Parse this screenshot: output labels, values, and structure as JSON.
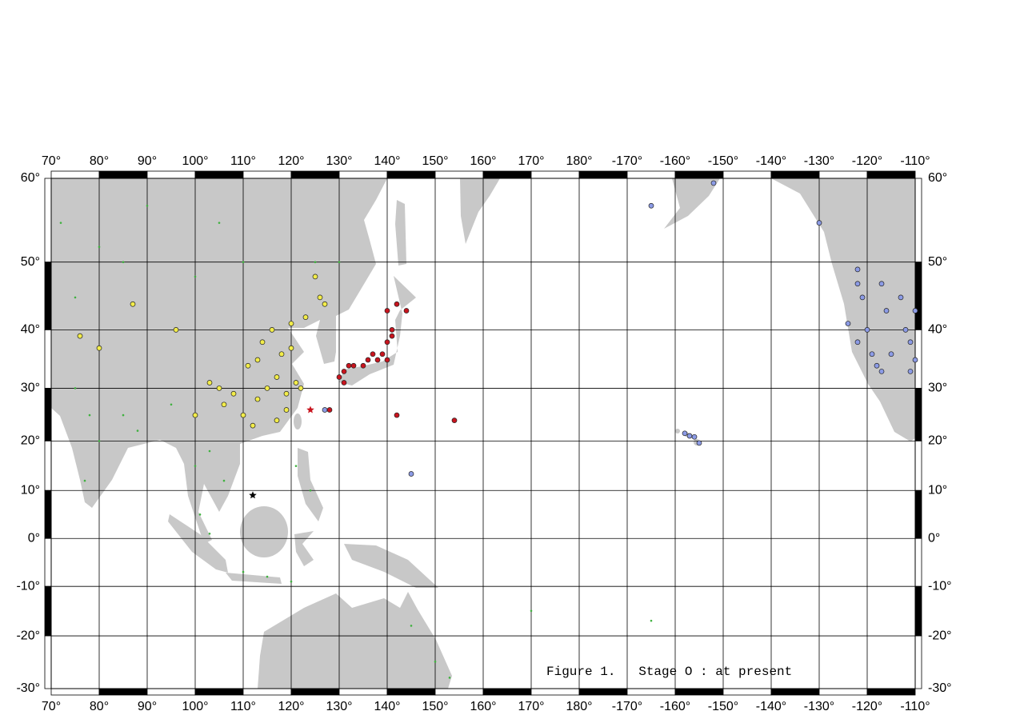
{
  "map": {
    "caption": "Figure 1.   Stage O : at present",
    "xlim": [
      70,
      -110
    ],
    "ylim": [
      -30,
      60
    ],
    "xticks": [
      {
        "value": 70,
        "label": "70°"
      },
      {
        "value": 80,
        "label": "80°"
      },
      {
        "value": 90,
        "label": "90°"
      },
      {
        "value": 100,
        "label": "100°"
      },
      {
        "value": 110,
        "label": "110°"
      },
      {
        "value": 120,
        "label": "120°"
      },
      {
        "value": 130,
        "label": "130°"
      },
      {
        "value": 140,
        "label": "140°"
      },
      {
        "value": 150,
        "label": "150°"
      },
      {
        "value": 160,
        "label": "160°"
      },
      {
        "value": 170,
        "label": "170°"
      },
      {
        "value": 180,
        "label": "180°"
      },
      {
        "value": -170,
        "label": "-170°"
      },
      {
        "value": -160,
        "label": "-160°"
      },
      {
        "value": -150,
        "label": "-150°"
      },
      {
        "value": -140,
        "label": "-140°"
      },
      {
        "value": -130,
        "label": "-130°"
      },
      {
        "value": -120,
        "label": "-120°"
      },
      {
        "value": -110,
        "label": "-110°"
      }
    ],
    "yticks": [
      {
        "value": 60,
        "label": "60°"
      },
      {
        "value": 50,
        "label": "50°"
      },
      {
        "value": 40,
        "label": "40°"
      },
      {
        "value": 30,
        "label": "30°"
      },
      {
        "value": 20,
        "label": "20°"
      },
      {
        "value": 10,
        "label": "10°"
      },
      {
        "value": 0,
        "label": "0°"
      },
      {
        "value": -10,
        "label": "-10°"
      },
      {
        "value": -20,
        "label": "-20°"
      },
      {
        "value": -30,
        "label": "-30°"
      }
    ],
    "series": [
      {
        "color": "#3fb13f",
        "marker": "dot",
        "x": [
          72,
          80,
          90,
          100,
          75,
          78,
          80,
          77,
          85,
          88,
          95,
          100,
          103,
          106,
          101,
          110,
          115,
          120,
          103,
          124,
          121,
          105,
          110,
          125,
          130,
          145,
          150,
          153,
          -165,
          170,
          75,
          85
        ],
        "y": [
          55,
          52,
          57,
          48,
          30,
          25,
          20,
          12,
          25,
          22,
          27,
          15,
          18,
          12,
          5,
          -7,
          -8,
          -9,
          1,
          10,
          15,
          55,
          50,
          50,
          50,
          -18,
          -25,
          -28,
          -17,
          -15,
          45,
          50
        ]
      },
      {
        "color": "#f2ec4a",
        "marker": "circle",
        "x": [
          115,
          117,
          113,
          118,
          120,
          121,
          119,
          112,
          110,
          108,
          105,
          103,
          113,
          116,
          123,
          126,
          125,
          127,
          120,
          114,
          111,
          106,
          100,
          117,
          96,
          80,
          87,
          76,
          122,
          119
        ],
        "y": [
          30,
          32,
          28,
          36,
          37,
          31,
          26,
          23,
          25,
          29,
          30,
          31,
          35,
          40,
          42,
          45,
          48,
          44,
          41,
          38,
          34,
          27,
          25,
          24,
          40,
          37,
          44,
          39,
          30,
          29
        ]
      },
      {
        "color": "#c8141e",
        "marker": "circle",
        "x": [
          139,
          140,
          141,
          140,
          142,
          136,
          135,
          133,
          131,
          130,
          131,
          138,
          137,
          140,
          141,
          144,
          128,
          142,
          154,
          132
        ],
        "y": [
          36,
          38,
          40,
          43,
          44,
          35,
          34,
          34,
          33,
          32,
          31,
          35,
          36,
          35,
          39,
          43,
          26,
          25,
          24,
          34
        ]
      },
      {
        "color": "#8c9be6",
        "marker": "circle",
        "x": [
          -122,
          -121,
          -122,
          -118,
          -117,
          -119,
          -115,
          -112,
          -111,
          -113,
          -116,
          -120,
          -111,
          -124,
          -110,
          -117,
          -110,
          -122,
          -130,
          -152,
          -165,
          -158,
          -157,
          -156,
          -155,
          145,
          127
        ],
        "y": [
          47,
          45,
          38,
          34,
          33,
          36,
          36,
          40,
          33,
          45,
          43,
          40,
          38,
          41,
          35,
          47,
          43,
          49,
          55,
          59.5,
          57,
          21.5,
          21,
          20.8,
          19.6,
          13.4,
          26
        ]
      },
      {
        "color": "#000000",
        "marker": "star",
        "x": [
          112
        ],
        "y": [
          9
        ]
      },
      {
        "color": "#c8141e",
        "marker": "star",
        "x": [
          124
        ],
        "y": [
          26
        ]
      }
    ]
  }
}
